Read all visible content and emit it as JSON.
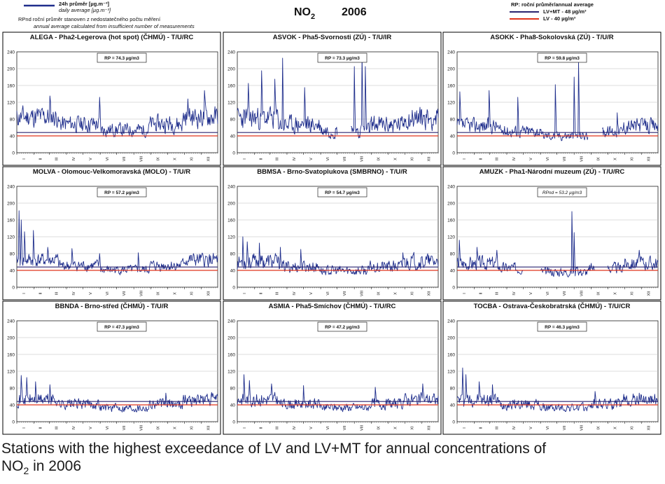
{
  "header": {
    "legend_daily_cz": "24h průměr [µg.m⁻³]",
    "legend_daily_en": "daily average [µg.m⁻³]",
    "legend_rpnd_cz": "RPnd  roční průměr stanoven z nedostatečného počtu měření",
    "legend_rpnd_en": "annual average calculated from insufficient number of measurements",
    "title_main": "NO",
    "title_sub": "2",
    "title_year": "2006",
    "legend_rp": "RP: roční průměr/annual average",
    "legend_lvmt": "LV+MT - 48 µg/m³",
    "legend_lv": "LV - 40 µg/m³",
    "colors": {
      "series": "#1f2e8c",
      "lvmt": "#2a2470",
      "lv": "#e0341c"
    }
  },
  "caption": {
    "line1": "Stations with the highest exceedance of LV and LV+MT for annual concentrations of",
    "line2_main": "NO",
    "line2_sub": "2",
    "line2_rest": " in 2006"
  },
  "chart_data": [
    {
      "type": "line",
      "title": "ALEGA - Pha2-Legerova (hot spot) (ČHMÚ) - T/U/RC",
      "annotation": "RP = 74.3 µg/m3",
      "mean": 74.3,
      "amp": 28,
      "spikes": [
        [
          60,
          135
        ],
        [
          150,
          132
        ],
        [
          310,
          128
        ],
        [
          340,
          148
        ]
      ],
      "gaps": [],
      "ylim": [
        0,
        240
      ],
      "yticks": [
        0,
        40,
        80,
        120,
        160,
        200,
        240
      ],
      "months": [
        "I",
        "II",
        "III",
        "IV",
        "V",
        "VI",
        "VII",
        "VIII",
        "IX",
        "X",
        "XI",
        "XII"
      ],
      "ref_lines": [
        48,
        40
      ],
      "seed": 11
    },
    {
      "type": "line",
      "title": "ASVOK - Pha5-Svornosti (ZÚ) - T/U/IR",
      "annotation": "RP = 73.3 µg/m3",
      "mean": 72,
      "amp": 30,
      "spikes": [
        [
          20,
          165
        ],
        [
          44,
          195
        ],
        [
          68,
          175
        ],
        [
          82,
          225
        ],
        [
          122,
          155
        ],
        [
          212,
          205
        ],
        [
          226,
          232
        ],
        [
          232,
          205
        ]
      ],
      "gaps": [
        [
          182,
          205
        ]
      ],
      "ylim": [
        0,
        240
      ],
      "yticks": [
        0,
        40,
        80,
        120,
        160,
        200,
        240
      ],
      "months": [
        "I",
        "II",
        "III",
        "IV",
        "V",
        "VI",
        "VII",
        "VIII",
        "IX",
        "X",
        "XI",
        "XII"
      ],
      "ref_lines": [
        48,
        40
      ],
      "seed": 23
    },
    {
      "type": "line",
      "title": "ASOKK - Pha8-Sokolovská (ZÚ) - T/U/R",
      "annotation": "RP = 59.8 µg/m3",
      "mean": 56,
      "amp": 20,
      "spikes": [
        [
          5,
          145
        ],
        [
          58,
          148
        ],
        [
          110,
          132
        ],
        [
          178,
          162
        ],
        [
          212,
          180
        ],
        [
          220,
          215
        ],
        [
          290,
          95
        ]
      ],
      "gaps": [
        [
          238,
          262
        ]
      ],
      "ylim": [
        0,
        240
      ],
      "yticks": [
        0,
        40,
        80,
        120,
        160,
        200,
        240
      ],
      "months": [
        "I",
        "II",
        "III",
        "IV",
        "V",
        "VI",
        "VII",
        "VIII",
        "IX",
        "X",
        "XI",
        "XII"
      ],
      "ref_lines": [
        48,
        40
      ],
      "seed": 37
    },
    {
      "type": "line",
      "title": "MOLVA - Olomouc-Velkomoravská (MOLO) - T/U/R",
      "annotation": "RP = 57.2 µg/m3",
      "mean": 56,
      "amp": 18,
      "spikes": [
        [
          4,
          182
        ],
        [
          8,
          160
        ],
        [
          14,
          132
        ],
        [
          30,
          135
        ],
        [
          56,
          95
        ],
        [
          100,
          92
        ],
        [
          150,
          80
        ],
        [
          220,
          82
        ]
      ],
      "gaps": [],
      "ylim": [
        0,
        240
      ],
      "yticks": [
        0,
        40,
        80,
        120,
        160,
        200,
        240
      ],
      "months": [
        "I",
        "II",
        "III",
        "IV",
        "V",
        "VI",
        "VII",
        "VIII",
        "IX",
        "X",
        "XI",
        "XII"
      ],
      "ref_lines": [
        48,
        40
      ],
      "seed": 41
    },
    {
      "type": "line",
      "title": "BBMSA - Brno-Svatoplukova (SMBRNO) - T/U/R",
      "annotation": "RP = 54.7 µg/m3",
      "mean": 53,
      "amp": 20,
      "spikes": [
        [
          10,
          120
        ],
        [
          18,
          108
        ],
        [
          40,
          105
        ],
        [
          78,
          95
        ],
        [
          115,
          90
        ],
        [
          300,
          82
        ]
      ],
      "gaps": [],
      "ylim": [
        0,
        240
      ],
      "yticks": [
        0,
        40,
        80,
        120,
        160,
        200,
        240
      ],
      "months": [
        "I",
        "II",
        "III",
        "IV",
        "V",
        "VI",
        "VII",
        "VIII",
        "IX",
        "X",
        "XI",
        "XII"
      ],
      "ref_lines": [
        48,
        40
      ],
      "seed": 53
    },
    {
      "type": "line",
      "title": "AMUZK - Pha1-Národní muzeum (ZÚ) - T/U/RC",
      "annotation": "RPnd = 53.2 µg/m3",
      "mean": 50,
      "amp": 18,
      "spikes": [
        [
          4,
          112
        ],
        [
          36,
          95
        ],
        [
          72,
          88
        ],
        [
          208,
          180
        ],
        [
          212,
          130
        ],
        [
          330,
          88
        ]
      ],
      "gaps": [
        [
          120,
          150
        ],
        [
          250,
          272
        ]
      ],
      "ylim": [
        0,
        240
      ],
      "yticks": [
        0,
        40,
        80,
        120,
        160,
        200,
        240
      ],
      "months": [
        "I",
        "II",
        "III",
        "IV",
        "V",
        "VI",
        "VII",
        "VIII",
        "IX",
        "X",
        "XI",
        "XII"
      ],
      "ref_lines": [
        48,
        40
      ],
      "seed": 67
    },
    {
      "type": "line",
      "title": "BBNDA - Brno-střed (ČHMÚ) - T/U/R",
      "annotation": "RP = 47.3 µg/m3",
      "mean": 46,
      "amp": 17,
      "spikes": [
        [
          8,
          110
        ],
        [
          18,
          105
        ],
        [
          34,
          95
        ],
        [
          60,
          88
        ],
        [
          270,
          68
        ]
      ],
      "gaps": [],
      "ylim": [
        0,
        240
      ],
      "yticks": [
        0,
        40,
        80,
        120,
        160,
        200,
        240
      ],
      "months": [
        "I",
        "II",
        "III",
        "IV",
        "V",
        "VI",
        "VII",
        "VIII",
        "IX",
        "X",
        "XI",
        "XII"
      ],
      "ref_lines": [
        48,
        40
      ],
      "seed": 71
    },
    {
      "type": "line",
      "title": "ASMIA - Pha5-Smíchov (ČHMÚ) - T/U/RC",
      "annotation": "RP = 47.2 µg/m3",
      "mean": 46,
      "amp": 17,
      "spikes": [
        [
          12,
          112
        ],
        [
          22,
          98
        ],
        [
          62,
          90
        ],
        [
          120,
          86
        ],
        [
          250,
          82
        ],
        [
          336,
          90
        ]
      ],
      "gaps": [],
      "ylim": [
        0,
        240
      ],
      "yticks": [
        0,
        40,
        80,
        120,
        160,
        200,
        240
      ],
      "months": [
        "I",
        "II",
        "III",
        "IV",
        "V",
        "VI",
        "VII",
        "VIII",
        "IX",
        "X",
        "XI",
        "XII"
      ],
      "ref_lines": [
        48,
        40
      ],
      "seed": 83
    },
    {
      "type": "line",
      "title": "TOCBA - Ostrava-Českobratrská (ČHMÚ) - T/U/CR",
      "annotation": "RP = 46.3 µg/m3",
      "mean": 45,
      "amp": 17,
      "spikes": [
        [
          10,
          128
        ],
        [
          16,
          112
        ],
        [
          40,
          95
        ],
        [
          64,
          88
        ],
        [
          250,
          72
        ],
        [
          330,
          68
        ]
      ],
      "gaps": [],
      "ylim": [
        0,
        240
      ],
      "yticks": [
        0,
        40,
        80,
        120,
        160,
        200,
        240
      ],
      "months": [
        "I",
        "II",
        "III",
        "IV",
        "V",
        "VI",
        "VII",
        "VIII",
        "IX",
        "X",
        "XI",
        "XII"
      ],
      "ref_lines": [
        48,
        40
      ],
      "seed": 97
    }
  ]
}
